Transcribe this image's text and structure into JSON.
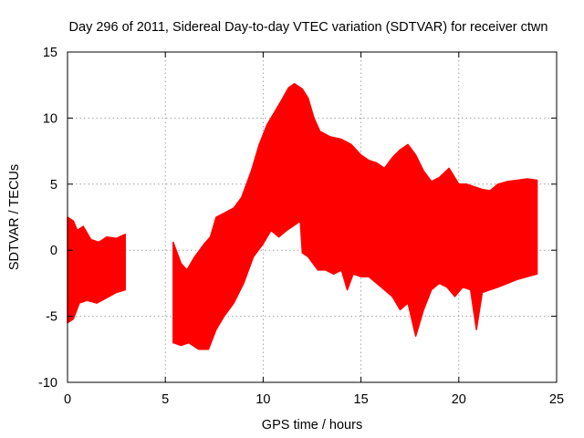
{
  "chart_data": {
    "type": "area",
    "title": "Day 296 of 2011, Sidereal Day-to-day VTEC variation (SDTVAR) for receiver ctwn",
    "xlabel": "GPS time / hours",
    "ylabel": "SDTVAR / TECUs",
    "xlim": [
      0,
      25
    ],
    "ylim": [
      -10,
      15
    ],
    "xticks": [
      0,
      5,
      10,
      15,
      20,
      25
    ],
    "yticks": [
      -10,
      -5,
      0,
      5,
      10,
      15
    ],
    "xtick_labels": [
      "0",
      "5",
      "10",
      "15",
      "20",
      "25"
    ],
    "ytick_labels": [
      "-10",
      "-5",
      "0",
      "5",
      "10",
      "15"
    ],
    "grid": true,
    "color": "#ff0000",
    "series": [
      {
        "name": "segment-1",
        "upper": [
          [
            0.0,
            2.5
          ],
          [
            0.3,
            2.2
          ],
          [
            0.5,
            1.5
          ],
          [
            0.8,
            1.8
          ],
          [
            1.2,
            0.8
          ],
          [
            1.6,
            0.6
          ],
          [
            2.0,
            1.0
          ],
          [
            2.5,
            0.9
          ],
          [
            2.95,
            1.2
          ]
        ],
        "lower": [
          [
            0.0,
            -5.5
          ],
          [
            0.3,
            -5.2
          ],
          [
            0.6,
            -4.0
          ],
          [
            1.0,
            -3.8
          ],
          [
            1.5,
            -4.0
          ],
          [
            2.0,
            -3.6
          ],
          [
            2.5,
            -3.2
          ],
          [
            2.95,
            -3.0
          ]
        ]
      },
      {
        "name": "segment-2",
        "upper": [
          [
            5.4,
            0.6
          ],
          [
            5.8,
            -1.0
          ],
          [
            6.1,
            -1.5
          ],
          [
            6.5,
            -0.5
          ],
          [
            7.0,
            0.5
          ],
          [
            7.3,
            1.0
          ],
          [
            7.6,
            2.5
          ],
          [
            8.0,
            2.8
          ],
          [
            8.5,
            3.2
          ],
          [
            8.9,
            4.0
          ],
          [
            9.4,
            6.0
          ],
          [
            9.8,
            8.0
          ],
          [
            10.2,
            9.5
          ],
          [
            10.6,
            10.5
          ],
          [
            11.0,
            11.5
          ],
          [
            11.3,
            12.3
          ],
          [
            11.6,
            12.6
          ],
          [
            12.0,
            12.2
          ],
          [
            12.3,
            11.5
          ],
          [
            12.6,
            10.0
          ],
          [
            12.9,
            9.0
          ],
          [
            13.4,
            8.6
          ],
          [
            14.0,
            8.4
          ],
          [
            14.5,
            8.0
          ],
          [
            15.0,
            7.2
          ],
          [
            15.4,
            6.8
          ],
          [
            15.8,
            6.6
          ],
          [
            16.2,
            6.2
          ],
          [
            16.6,
            7.0
          ],
          [
            17.0,
            7.6
          ],
          [
            17.4,
            8.0
          ],
          [
            17.8,
            7.2
          ],
          [
            18.2,
            6.0
          ],
          [
            18.6,
            5.2
          ],
          [
            19.0,
            5.5
          ],
          [
            19.5,
            6.2
          ],
          [
            20.0,
            5.0
          ],
          [
            20.4,
            5.0
          ],
          [
            20.8,
            4.8
          ],
          [
            21.2,
            4.6
          ],
          [
            21.6,
            4.5
          ],
          [
            22.0,
            5.0
          ],
          [
            22.5,
            5.2
          ],
          [
            23.0,
            5.3
          ],
          [
            23.5,
            5.4
          ],
          [
            24.0,
            5.3
          ]
        ],
        "lower": [
          [
            5.4,
            -7.0
          ],
          [
            5.8,
            -7.2
          ],
          [
            6.2,
            -7.0
          ],
          [
            6.7,
            -7.5
          ],
          [
            7.2,
            -7.5
          ],
          [
            7.6,
            -6.0
          ],
          [
            8.0,
            -5.0
          ],
          [
            8.5,
            -4.0
          ],
          [
            9.0,
            -2.5
          ],
          [
            9.5,
            -0.5
          ],
          [
            10.0,
            0.5
          ],
          [
            10.4,
            1.5
          ],
          [
            10.8,
            1.0
          ],
          [
            11.2,
            1.5
          ],
          [
            11.5,
            1.8
          ],
          [
            11.9,
            2.2
          ],
          [
            12.0,
            -0.2
          ],
          [
            12.3,
            -0.5
          ],
          [
            12.8,
            -1.5
          ],
          [
            13.2,
            -1.5
          ],
          [
            13.6,
            -1.8
          ],
          [
            14.0,
            -1.5
          ],
          [
            14.3,
            -3.0
          ],
          [
            14.6,
            -1.8
          ],
          [
            15.0,
            -2.0
          ],
          [
            15.4,
            -2.0
          ],
          [
            15.8,
            -2.5
          ],
          [
            16.2,
            -3.0
          ],
          [
            16.6,
            -3.5
          ],
          [
            17.0,
            -4.5
          ],
          [
            17.4,
            -4.0
          ],
          [
            17.8,
            -6.5
          ],
          [
            18.2,
            -4.5
          ],
          [
            18.6,
            -3.0
          ],
          [
            19.0,
            -2.5
          ],
          [
            19.4,
            -2.8
          ],
          [
            19.8,
            -3.5
          ],
          [
            20.2,
            -2.8
          ],
          [
            20.6,
            -3.0
          ],
          [
            20.9,
            -6.0
          ],
          [
            21.2,
            -3.2
          ],
          [
            21.6,
            -3.0
          ],
          [
            22.0,
            -2.8
          ],
          [
            22.5,
            -2.5
          ],
          [
            23.0,
            -2.2
          ],
          [
            23.5,
            -2.0
          ],
          [
            24.0,
            -1.8
          ]
        ]
      }
    ]
  }
}
